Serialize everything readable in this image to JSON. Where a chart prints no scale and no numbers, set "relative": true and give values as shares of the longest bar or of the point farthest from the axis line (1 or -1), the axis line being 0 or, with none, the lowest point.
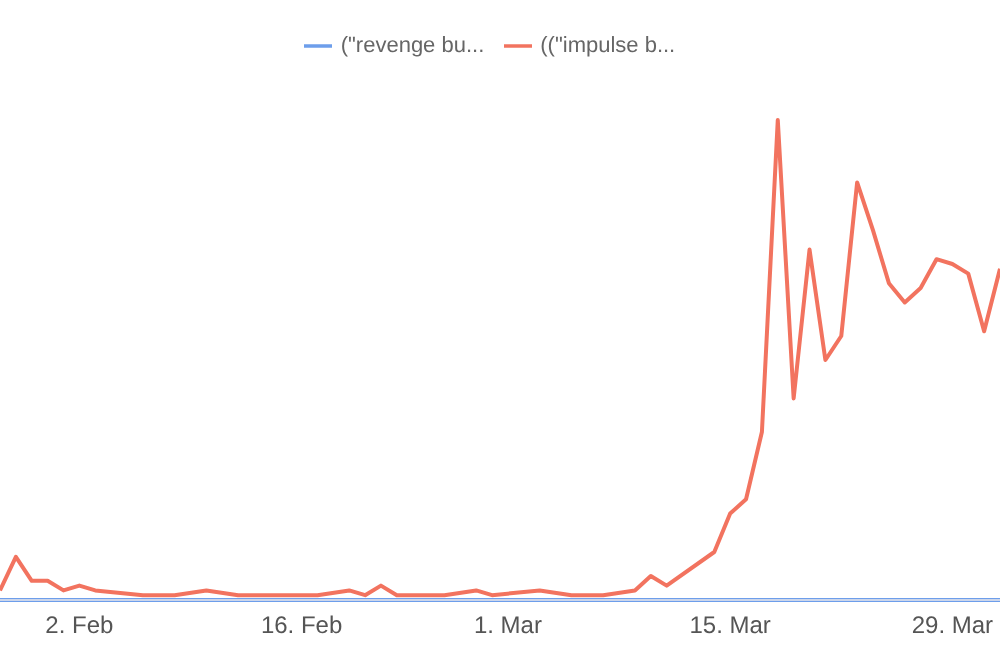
{
  "chart_data": {
    "type": "line",
    "relative": true,
    "legend": "top",
    "marker": "none",
    "line_style": "solid",
    "grid": false,
    "x": [
      "--01-28",
      "--01-29",
      "--01-30",
      "--01-31",
      "--02-01",
      "--02-02",
      "--02-03",
      "--02-06",
      "--02-08",
      "--02-10",
      "--02-12",
      "--02-14",
      "--02-17",
      "--02-19",
      "--02-20",
      "--02-21",
      "--02-22",
      "--02-25",
      "--02-27",
      "--02-28",
      "--03-03",
      "--03-05",
      "--03-07",
      "--03-09",
      "--03-10",
      "--03-11",
      "--03-14",
      "--03-15",
      "--03-16",
      "--03-17",
      "--03-18",
      "--03-19",
      "--03-20",
      "--03-21",
      "--03-22",
      "--03-23",
      "--03-24",
      "--03-25",
      "--03-26",
      "--03-27",
      "--03-28",
      "--03-29",
      "--03-30",
      "--03-31",
      "--04-01"
    ],
    "xlim": [
      "--01-28",
      "--04-01"
    ],
    "xticks": [
      {
        "value": "--02-02",
        "label": "2. Feb"
      },
      {
        "value": "--02-16",
        "label": "16. Feb"
      },
      {
        "value": "--03-01",
        "label": "1. Mar"
      },
      {
        "value": "--03-15",
        "label": "15. Mar"
      },
      {
        "value": "--03-29",
        "label": "29. Mar"
      }
    ],
    "series": [
      {
        "name": "(\"revenge bu...",
        "color": "#6d9eeb",
        "values": [
          0,
          0,
          0,
          0,
          0,
          0,
          0,
          0,
          0,
          0,
          0,
          0,
          0,
          0,
          0,
          0,
          0,
          0,
          0,
          0,
          0,
          0,
          0,
          0,
          0,
          0,
          0,
          0,
          0,
          0,
          0,
          0,
          0,
          0,
          0,
          0,
          0,
          0,
          0,
          0,
          0,
          0,
          0,
          0,
          0
        ]
      },
      {
        "name": "((\"impulse b...",
        "color": "#f2735f",
        "values": [
          0.02,
          0.09,
          0.04,
          0.04,
          0.02,
          0.03,
          0.02,
          0.01,
          0.01,
          0.02,
          0.01,
          0.01,
          0.01,
          0.02,
          0.01,
          0.03,
          0.01,
          0.01,
          0.02,
          0.01,
          0.02,
          0.01,
          0.01,
          0.02,
          0.05,
          0.03,
          0.1,
          0.18,
          0.21,
          0.35,
          1.0,
          0.42,
          0.73,
          0.5,
          0.55,
          0.87,
          0.77,
          0.66,
          0.62,
          0.65,
          0.71,
          0.7,
          0.68,
          0.56,
          0.69
        ]
      }
    ]
  }
}
